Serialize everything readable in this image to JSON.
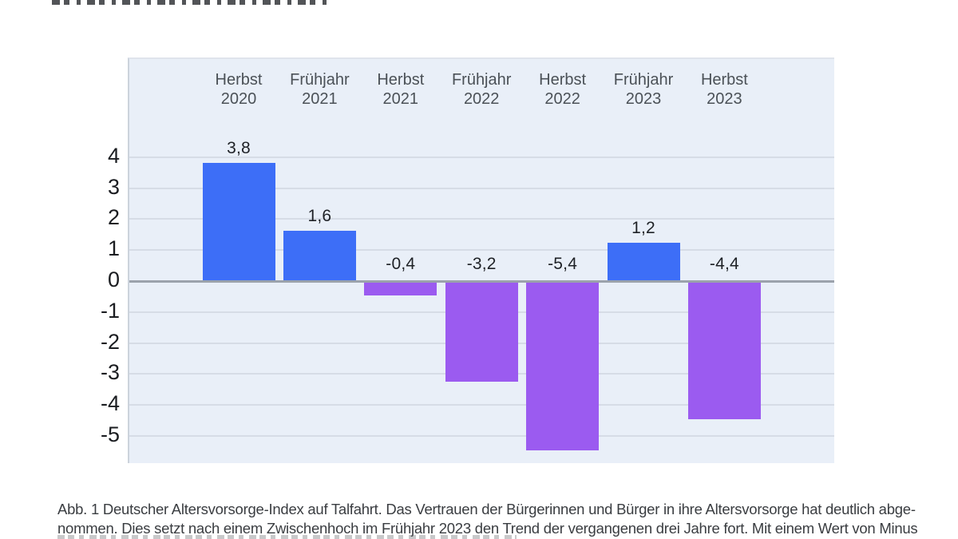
{
  "figure": {
    "caption_line1": "Abb. 1 Deutscher Altersvorsorge-Index auf Talfahrt. Das Vertrauen der Bürgerinnen und Bürger in ihre Altersvorsorge hat deutlich abge-",
    "caption_line2": "nommen. Dies setzt nach einem Zwischenhoch im Frühjahr 2023 den Trend der vergangenen drei Jahre fort. Mit einem Wert von Minus"
  },
  "chart_data": {
    "type": "bar",
    "title": "",
    "xlabel": "",
    "ylabel": "",
    "categories": [
      "Herbst 2020",
      "Frühjahr 2021",
      "Herbst 2021",
      "Frühjahr 2022",
      "Herbst 2022",
      "Frühjahr 2023",
      "Herbst 2023"
    ],
    "values": [
      3.8,
      1.6,
      -0.4,
      -3.2,
      -5.4,
      1.2,
      -4.4
    ],
    "value_labels": [
      "3,8",
      "1,6",
      "-0,4",
      "-3,2",
      "-5,4",
      "1,2",
      "-4,4"
    ],
    "y_ticks": [
      "4",
      "3",
      "2",
      "1",
      "0",
      "-1",
      "-2",
      "-3",
      "-4",
      "-5"
    ],
    "ylim": [
      -5.9,
      7.3
    ],
    "grid": true,
    "legend": "none",
    "colors": {
      "positive_bar": "#3d6ef7",
      "negative_bar": "#9b5bf0",
      "plot_background": "#e9eff8",
      "gridline": "#d6dce6",
      "zero_line": "#9ba2ac",
      "tick_label": "#1b1d21",
      "category_label": "#4b5157",
      "value_label": "#1e2126"
    }
  }
}
